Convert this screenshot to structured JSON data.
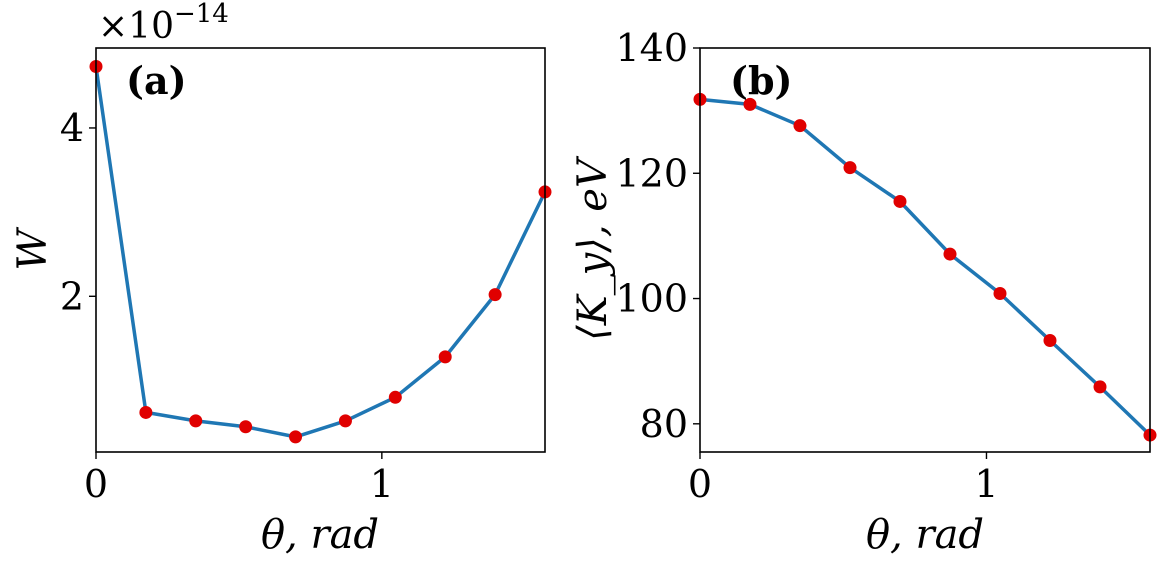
{
  "chart_data": [
    {
      "type": "line",
      "panel_label": "(a)",
      "xlabel": "θ, rad",
      "ylabel": "W",
      "y_multiplier": "×10",
      "y_multiplier_exponent": "−14",
      "xlim": [
        0,
        1.5708
      ],
      "ylim": [
        0.15,
        4.95
      ],
      "xticks": [
        0,
        1
      ],
      "xtick_labels": [
        "0",
        "1"
      ],
      "yticks": [
        2,
        4
      ],
      "ytick_labels": [
        "2",
        "4"
      ],
      "grid": false,
      "line_color": "#1f77b4",
      "marker_color": "#e00000",
      "series": [
        {
          "x": [
            0,
            0.1745,
            0.349,
            0.5236,
            0.6981,
            0.8727,
            1.0472,
            1.2217,
            1.3963,
            1.5708
          ],
          "y": [
            4.73,
            0.62,
            0.52,
            0.45,
            0.33,
            0.52,
            0.8,
            1.28,
            2.02,
            3.24
          ]
        }
      ]
    },
    {
      "type": "line",
      "panel_label": "(b)",
      "xlabel": "θ, rad",
      "ylabel": "⟨K_y⟩, eV",
      "xlim": [
        0,
        1.5708
      ],
      "ylim": [
        75.5,
        140
      ],
      "xticks": [
        0,
        1
      ],
      "xtick_labels": [
        "0",
        "1"
      ],
      "yticks": [
        80,
        100,
        120,
        140
      ],
      "ytick_labels": [
        "80",
        "100",
        "120",
        "140"
      ],
      "grid": false,
      "line_color": "#1f77b4",
      "marker_color": "#e00000",
      "series": [
        {
          "x": [
            0,
            0.1745,
            0.349,
            0.5236,
            0.6981,
            0.8727,
            1.0472,
            1.2217,
            1.3963,
            1.5708
          ],
          "y": [
            131.8,
            131.0,
            127.6,
            120.9,
            115.5,
            107.1,
            100.8,
            93.3,
            85.9,
            78.2
          ]
        }
      ]
    }
  ]
}
